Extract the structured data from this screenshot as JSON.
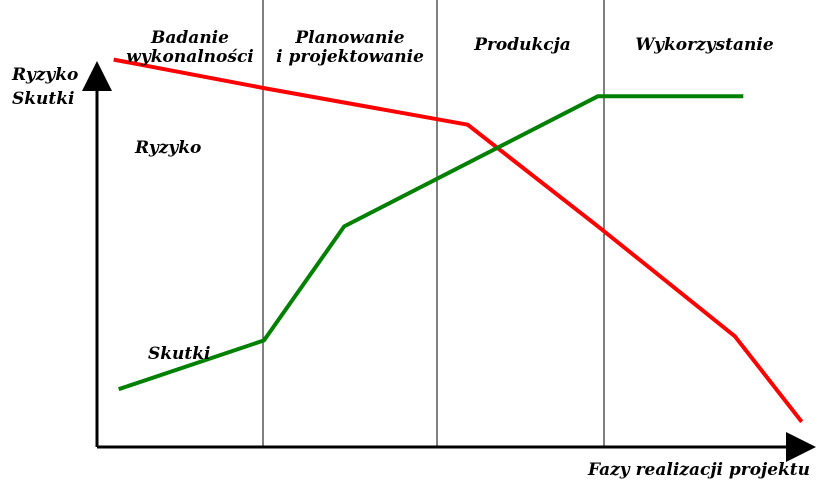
{
  "chart_data": {
    "type": "line",
    "ylabel": [
      "Ryzyko",
      "Skutki"
    ],
    "xlabel": "Fazy realizacji projektu",
    "phases": [
      {
        "label": [
          "Badanie",
          "wykonalności"
        ]
      },
      {
        "label": [
          "Planowanie",
          "i  projektowanie"
        ]
      },
      {
        "label": [
          "Produkcja"
        ]
      },
      {
        "label": [
          "Wykorzystanie"
        ]
      }
    ],
    "xlim": [
      0,
      4.3
    ],
    "ylim": [
      0,
      1
    ],
    "grid": false,
    "series": [
      {
        "name": "Ryzyko",
        "color": "#ff0000",
        "x": [
          0.1,
          1.0,
          2.22,
          3.0,
          3.82,
          4.22
        ],
        "y": [
          0.92,
          0.85,
          0.76,
          0.51,
          0.24,
          0.03
        ]
      },
      {
        "name": "Skutki",
        "color": "#008000",
        "x": [
          0.13,
          1.0,
          1.48,
          3.0,
          3.87
        ],
        "y": [
          0.11,
          0.23,
          0.51,
          0.83,
          0.83
        ]
      }
    ]
  }
}
